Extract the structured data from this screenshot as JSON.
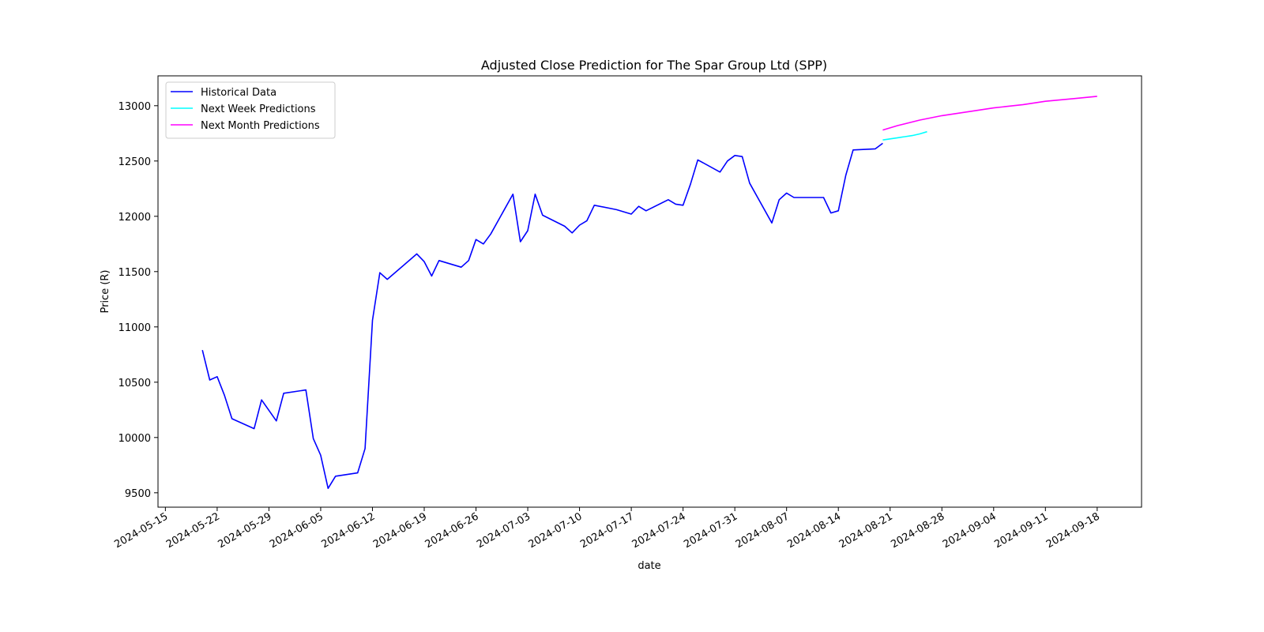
{
  "chart_data": {
    "type": "line",
    "title": "Adjusted Close Prediction for The Spar Group Ltd (SPP)",
    "xlabel": "date",
    "ylabel": "Price (R)",
    "xlim": [
      "2024-05-14",
      "2024-09-24"
    ],
    "ylim": [
      9370,
      13270
    ],
    "x_ticks": [
      "2024-05-15",
      "2024-05-22",
      "2024-05-29",
      "2024-06-05",
      "2024-06-12",
      "2024-06-19",
      "2024-06-26",
      "2024-07-03",
      "2024-07-10",
      "2024-07-17",
      "2024-07-24",
      "2024-07-31",
      "2024-08-07",
      "2024-08-14",
      "2024-08-21",
      "2024-08-28",
      "2024-09-04",
      "2024-09-11",
      "2024-09-18"
    ],
    "y_ticks": [
      9500,
      10000,
      10500,
      11000,
      11500,
      12000,
      12500,
      13000
    ],
    "grid": false,
    "legend": "upper-left",
    "series": [
      {
        "name": "Historical Data",
        "color": "#0000ff",
        "points": [
          [
            "2024-05-20",
            10790
          ],
          [
            "2024-05-21",
            10520
          ],
          [
            "2024-05-22",
            10550
          ],
          [
            "2024-05-23",
            10380
          ],
          [
            "2024-05-24",
            10170
          ],
          [
            "2024-05-27",
            10080
          ],
          [
            "2024-05-28",
            10340
          ],
          [
            "2024-05-30",
            10150
          ],
          [
            "2024-05-31",
            10400
          ],
          [
            "2024-06-03",
            10430
          ],
          [
            "2024-06-04",
            9990
          ],
          [
            "2024-06-05",
            9840
          ],
          [
            "2024-06-06",
            9540
          ],
          [
            "2024-06-07",
            9650
          ],
          [
            "2024-06-10",
            9680
          ],
          [
            "2024-06-11",
            9900
          ],
          [
            "2024-06-12",
            11060
          ],
          [
            "2024-06-13",
            11490
          ],
          [
            "2024-06-14",
            11430
          ],
          [
            "2024-06-18",
            11660
          ],
          [
            "2024-06-19",
            11590
          ],
          [
            "2024-06-20",
            11460
          ],
          [
            "2024-06-21",
            11600
          ],
          [
            "2024-06-24",
            11540
          ],
          [
            "2024-06-25",
            11600
          ],
          [
            "2024-06-26",
            11790
          ],
          [
            "2024-06-27",
            11750
          ],
          [
            "2024-06-28",
            11840
          ],
          [
            "2024-07-01",
            12200
          ],
          [
            "2024-07-02",
            11770
          ],
          [
            "2024-07-03",
            11870
          ],
          [
            "2024-07-04",
            12200
          ],
          [
            "2024-07-05",
            12010
          ],
          [
            "2024-07-08",
            11910
          ],
          [
            "2024-07-09",
            11850
          ],
          [
            "2024-07-10",
            11920
          ],
          [
            "2024-07-11",
            11960
          ],
          [
            "2024-07-12",
            12100
          ],
          [
            "2024-07-15",
            12060
          ],
          [
            "2024-07-17",
            12020
          ],
          [
            "2024-07-18",
            12090
          ],
          [
            "2024-07-19",
            12050
          ],
          [
            "2024-07-22",
            12150
          ],
          [
            "2024-07-23",
            12110
          ],
          [
            "2024-07-24",
            12100
          ],
          [
            "2024-07-25",
            12290
          ],
          [
            "2024-07-26",
            12510
          ],
          [
            "2024-07-29",
            12400
          ],
          [
            "2024-07-30",
            12500
          ],
          [
            "2024-07-31",
            12550
          ],
          [
            "2024-08-01",
            12540
          ],
          [
            "2024-08-02",
            12300
          ],
          [
            "2024-08-05",
            11940
          ],
          [
            "2024-08-06",
            12150
          ],
          [
            "2024-08-07",
            12210
          ],
          [
            "2024-08-08",
            12170
          ],
          [
            "2024-08-12",
            12170
          ],
          [
            "2024-08-13",
            12030
          ],
          [
            "2024-08-14",
            12050
          ],
          [
            "2024-08-15",
            12370
          ],
          [
            "2024-08-16",
            12600
          ],
          [
            "2024-08-19",
            12610
          ],
          [
            "2024-08-20",
            12660
          ]
        ]
      },
      {
        "name": "Next Week Predictions",
        "color": "#00ffff",
        "points": [
          [
            "2024-08-20",
            12690
          ],
          [
            "2024-08-21",
            12700
          ],
          [
            "2024-08-22",
            12710
          ],
          [
            "2024-08-23",
            12720
          ],
          [
            "2024-08-24",
            12730
          ],
          [
            "2024-08-25",
            12745
          ],
          [
            "2024-08-26",
            12765
          ]
        ]
      },
      {
        "name": "Next Month Predictions",
        "color": "#ff00ff",
        "points": [
          [
            "2024-08-20",
            12780
          ],
          [
            "2024-08-22",
            12820
          ],
          [
            "2024-08-25",
            12870
          ],
          [
            "2024-08-28",
            12910
          ],
          [
            "2024-09-01",
            12950
          ],
          [
            "2024-09-04",
            12980
          ],
          [
            "2024-09-08",
            13010
          ],
          [
            "2024-09-11",
            13040
          ],
          [
            "2024-09-15",
            13065
          ],
          [
            "2024-09-18",
            13085
          ]
        ]
      }
    ]
  }
}
